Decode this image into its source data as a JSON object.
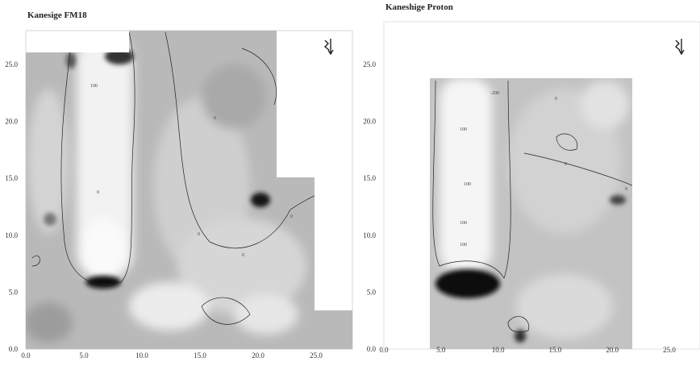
{
  "panels": [
    {
      "title": "Kanesige FM18",
      "x_ticks": [
        "0.0",
        "5.0",
        "10.0",
        "15.0",
        "20.0",
        "25.0"
      ],
      "y_ticks": [
        "0.0",
        "5.0",
        "10.0",
        "15.0",
        "20.0",
        "25.0"
      ],
      "contour_labels": [
        "100",
        "0",
        "0",
        "0",
        "0",
        "0"
      ]
    },
    {
      "title": "Kaneshige Proton",
      "x_ticks": [
        "0.0",
        "5.0",
        "10.0",
        "15.0",
        "20.0",
        "25.0"
      ],
      "y_ticks": [
        "0.0",
        "5.0",
        "10.0",
        "15.0",
        "20.0",
        "25.0"
      ],
      "contour_labels": [
        "-200",
        "100",
        "100",
        "100",
        "100",
        "0",
        "0",
        "0"
      ]
    }
  ]
}
